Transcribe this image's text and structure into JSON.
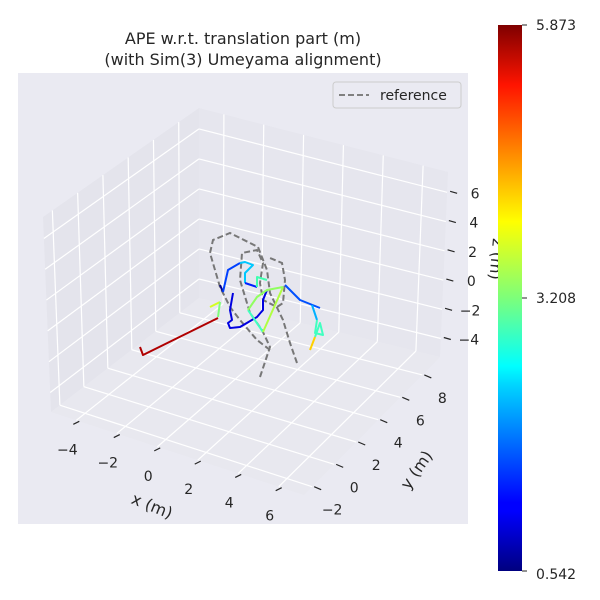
{
  "chart_data": {
    "type": "line",
    "projection": "3d",
    "title_line1": "APE w.r.t. translation part (m)",
    "title_line2": "(with Sim(3) Umeyama alignment)",
    "xlabel": "x (m)",
    "ylabel": "y (m)",
    "zlabel": "z (m)",
    "x_ticks": [
      "−4",
      "−2",
      "0",
      "2",
      "4",
      "6"
    ],
    "y_ticks": [
      "−2",
      "0",
      "2",
      "4",
      "6",
      "8"
    ],
    "z_ticks": [
      "−4",
      "−2",
      "0",
      "2",
      "4",
      "6"
    ],
    "grid": true,
    "legend": {
      "placement": "top-right",
      "entries": [
        {
          "name": "reference",
          "style": "dashed",
          "color": "#808080"
        }
      ]
    },
    "colorbar": {
      "colormap": "jet",
      "min": 0.542,
      "max": 5.873,
      "ticks": [
        "5.873",
        "3.208",
        "0.542"
      ]
    },
    "background": "#eaeaf2"
  }
}
